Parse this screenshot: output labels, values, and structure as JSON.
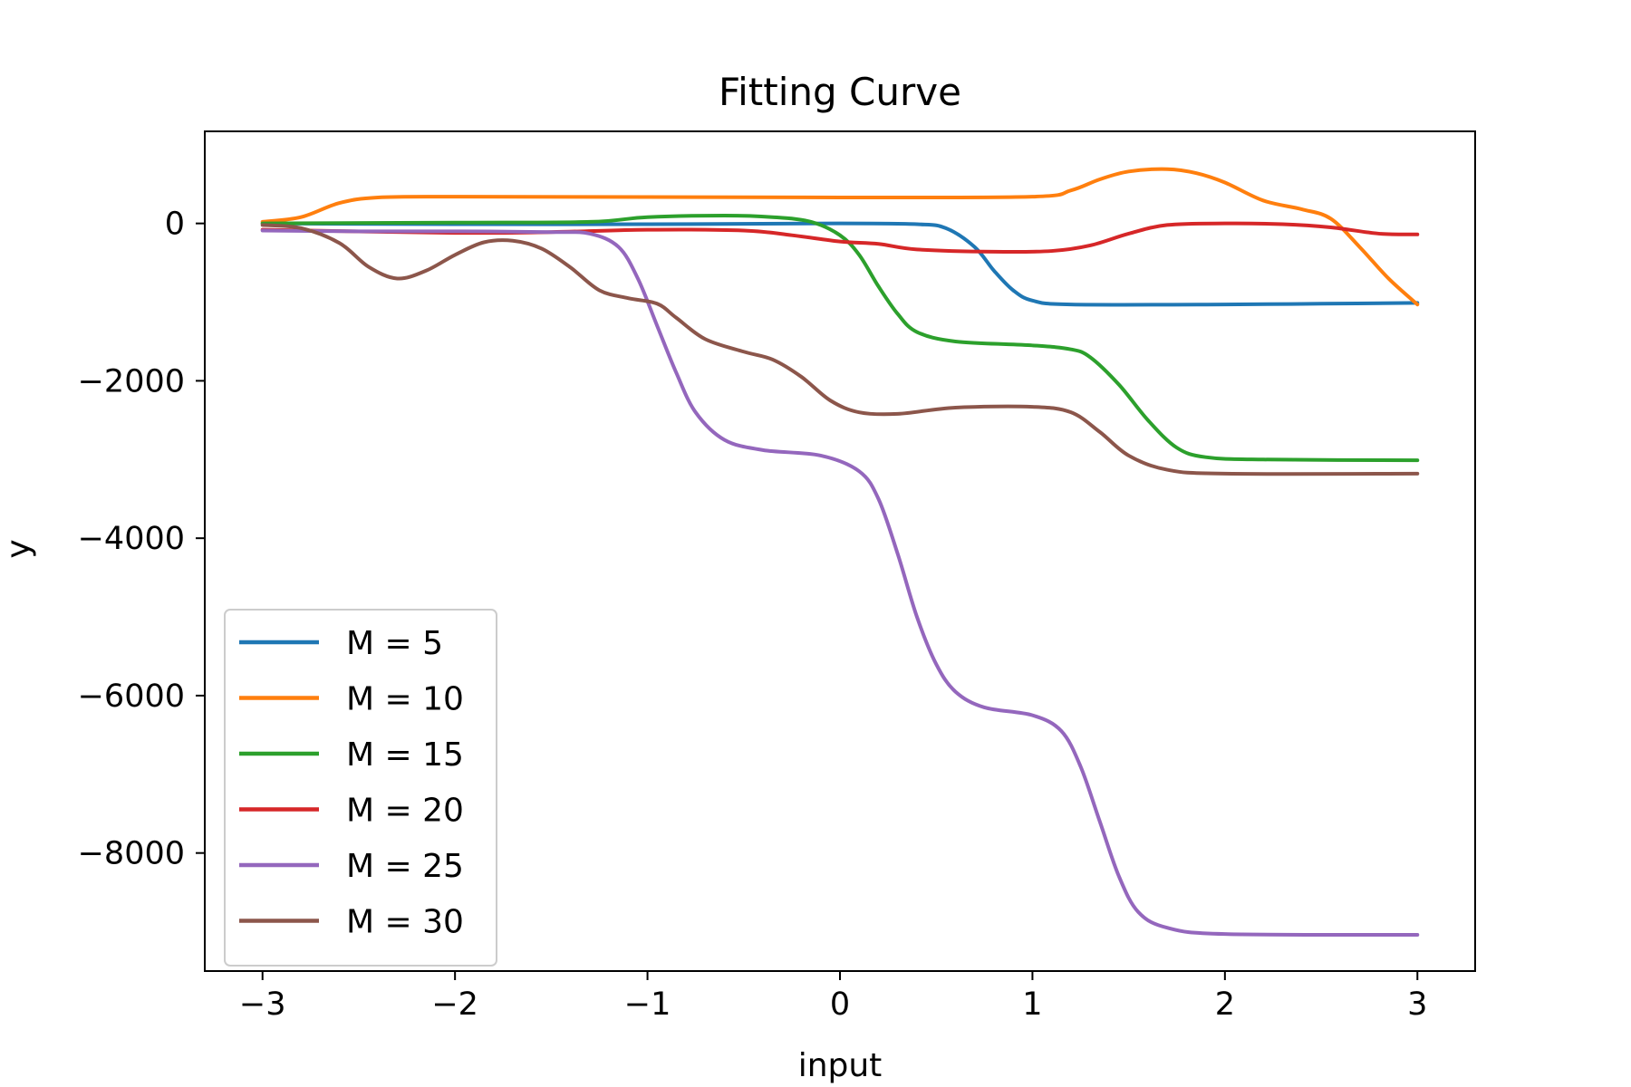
{
  "chart_data": {
    "type": "line",
    "title": "Fitting Curve",
    "xlabel": "input",
    "ylabel": "y",
    "xlim": [
      -3.3,
      3.3
    ],
    "ylim": [
      -9500,
      1170
    ],
    "xticks": [
      -3,
      -2,
      -1,
      0,
      1,
      2,
      3
    ],
    "xtick_labels": [
      "−3",
      "−2",
      "−1",
      "0",
      "1",
      "2",
      "3"
    ],
    "yticks": [
      0,
      -2000,
      -4000,
      -6000,
      -8000
    ],
    "ytick_labels": [
      "0",
      "−2000",
      "−4000",
      "−6000",
      "−8000"
    ],
    "grid": false,
    "legend_position": "lower-left",
    "series": [
      {
        "name": "M = 5",
        "color": "#1f77b4",
        "points": [
          [
            -3,
            0
          ],
          [
            -2,
            -10
          ],
          [
            -1,
            -10
          ],
          [
            0,
            0
          ],
          [
            0.4,
            -10
          ],
          [
            0.55,
            -60
          ],
          [
            0.7,
            -300
          ],
          [
            0.8,
            -600
          ],
          [
            0.9,
            -850
          ],
          [
            1.0,
            -980
          ],
          [
            1.2,
            -1030
          ],
          [
            2.0,
            -1030
          ],
          [
            2.5,
            -1020
          ],
          [
            3.0,
            -1010
          ]
        ]
      },
      {
        "name": "M = 10",
        "color": "#ff7f0e",
        "points": [
          [
            -3,
            20
          ],
          [
            -2.8,
            80
          ],
          [
            -2.6,
            260
          ],
          [
            -2.4,
            330
          ],
          [
            -2,
            340
          ],
          [
            -1,
            335
          ],
          [
            0,
            330
          ],
          [
            1,
            340
          ],
          [
            1.2,
            420
          ],
          [
            1.35,
            560
          ],
          [
            1.5,
            660
          ],
          [
            1.7,
            690
          ],
          [
            1.85,
            640
          ],
          [
            2.0,
            520
          ],
          [
            2.2,
            290
          ],
          [
            2.4,
            180
          ],
          [
            2.55,
            60
          ],
          [
            2.7,
            -300
          ],
          [
            2.85,
            -700
          ],
          [
            3.0,
            -1030
          ]
        ]
      },
      {
        "name": "M = 15",
        "color": "#2ca02c",
        "points": [
          [
            -3,
            0
          ],
          [
            -2,
            10
          ],
          [
            -1.3,
            20
          ],
          [
            -1.0,
            80
          ],
          [
            -0.6,
            100
          ],
          [
            -0.35,
            80
          ],
          [
            -0.15,
            20
          ],
          [
            0.0,
            -150
          ],
          [
            0.1,
            -400
          ],
          [
            0.2,
            -800
          ],
          [
            0.3,
            -1150
          ],
          [
            0.4,
            -1380
          ],
          [
            0.6,
            -1500
          ],
          [
            1.0,
            -1550
          ],
          [
            1.2,
            -1600
          ],
          [
            1.3,
            -1700
          ],
          [
            1.45,
            -2050
          ],
          [
            1.6,
            -2500
          ],
          [
            1.75,
            -2850
          ],
          [
            1.9,
            -2970
          ],
          [
            2.2,
            -3000
          ],
          [
            3.0,
            -3010
          ]
        ]
      },
      {
        "name": "M = 20",
        "color": "#d62728",
        "points": [
          [
            -3,
            -80
          ],
          [
            -2,
            -120
          ],
          [
            -1.5,
            -110
          ],
          [
            -1,
            -80
          ],
          [
            -0.5,
            -90
          ],
          [
            -0.25,
            -150
          ],
          [
            0,
            -230
          ],
          [
            0.2,
            -260
          ],
          [
            0.4,
            -330
          ],
          [
            0.8,
            -360
          ],
          [
            1.1,
            -350
          ],
          [
            1.3,
            -280
          ],
          [
            1.5,
            -130
          ],
          [
            1.7,
            -20
          ],
          [
            2.0,
            0
          ],
          [
            2.3,
            -10
          ],
          [
            2.55,
            -50
          ],
          [
            2.8,
            -130
          ],
          [
            3.0,
            -140
          ]
        ]
      },
      {
        "name": "M = 25",
        "color": "#9467bd",
        "points": [
          [
            -3,
            -90
          ],
          [
            -2.5,
            -100
          ],
          [
            -2,
            -100
          ],
          [
            -1.5,
            -110
          ],
          [
            -1.3,
            -130
          ],
          [
            -1.15,
            -300
          ],
          [
            -1.05,
            -700
          ],
          [
            -0.95,
            -1300
          ],
          [
            -0.85,
            -1900
          ],
          [
            -0.75,
            -2400
          ],
          [
            -0.6,
            -2750
          ],
          [
            -0.4,
            -2880
          ],
          [
            -0.1,
            -2950
          ],
          [
            0.1,
            -3150
          ],
          [
            0.2,
            -3500
          ],
          [
            0.3,
            -4200
          ],
          [
            0.4,
            -5000
          ],
          [
            0.5,
            -5600
          ],
          [
            0.6,
            -5950
          ],
          [
            0.75,
            -6150
          ],
          [
            1.0,
            -6250
          ],
          [
            1.15,
            -6450
          ],
          [
            1.25,
            -6900
          ],
          [
            1.35,
            -7600
          ],
          [
            1.45,
            -8300
          ],
          [
            1.55,
            -8750
          ],
          [
            1.7,
            -8950
          ],
          [
            2.0,
            -9030
          ],
          [
            3.0,
            -9040
          ]
        ]
      },
      {
        "name": "M = 30",
        "color": "#8c564b",
        "points": [
          [
            -3,
            -20
          ],
          [
            -2.8,
            -60
          ],
          [
            -2.6,
            -250
          ],
          [
            -2.45,
            -550
          ],
          [
            -2.3,
            -700
          ],
          [
            -2.15,
            -600
          ],
          [
            -2.0,
            -400
          ],
          [
            -1.85,
            -240
          ],
          [
            -1.7,
            -220
          ],
          [
            -1.55,
            -320
          ],
          [
            -1.4,
            -560
          ],
          [
            -1.25,
            -850
          ],
          [
            -1.1,
            -950
          ],
          [
            -0.95,
            -1020
          ],
          [
            -0.85,
            -1200
          ],
          [
            -0.7,
            -1470
          ],
          [
            -0.5,
            -1630
          ],
          [
            -0.35,
            -1730
          ],
          [
            -0.2,
            -1950
          ],
          [
            -0.05,
            -2250
          ],
          [
            0.1,
            -2400
          ],
          [
            0.3,
            -2420
          ],
          [
            0.6,
            -2340
          ],
          [
            1.0,
            -2330
          ],
          [
            1.2,
            -2400
          ],
          [
            1.35,
            -2650
          ],
          [
            1.5,
            -2950
          ],
          [
            1.7,
            -3130
          ],
          [
            2.0,
            -3180
          ],
          [
            3.0,
            -3180
          ]
        ]
      }
    ]
  }
}
